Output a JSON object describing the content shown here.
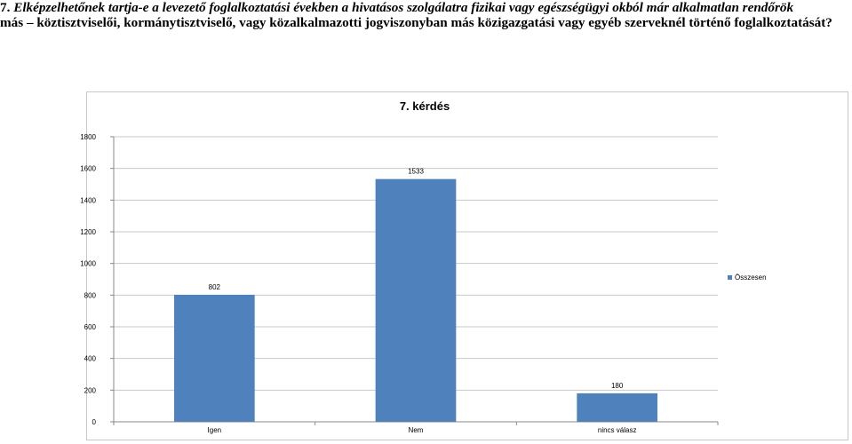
{
  "question": {
    "number": "7.",
    "line1": "Elképzelhetőnek tartja-e a levezető foglalkoztatási években a hivatásos szolgálatra fizikai vagy egészségügyi okból már alkalmatlan rendőrök",
    "line2": "más – köztisztviselői, kormánytisztviselő, vagy közalkalmazotti jogviszonyban más közigazgatási vagy egyéb szerveknél történő foglalkoztatását?"
  },
  "colors": {
    "bar": "#4f81bd",
    "question_text": "#000000",
    "gridline": "#c8c8c8"
  },
  "chart_data": {
    "type": "bar",
    "title": "7. kérdés",
    "categories": [
      "Igen",
      "Nem",
      "nincs válasz"
    ],
    "series": [
      {
        "name": "Összesen",
        "values": [
          802,
          1533,
          180
        ]
      }
    ],
    "data_labels": [
      "802",
      "1533",
      "180"
    ],
    "ylim": [
      0,
      1800
    ],
    "yticks": [
      0,
      200,
      400,
      600,
      800,
      1000,
      1200,
      1400,
      1600,
      1800
    ],
    "grid": true,
    "legend": "right"
  }
}
